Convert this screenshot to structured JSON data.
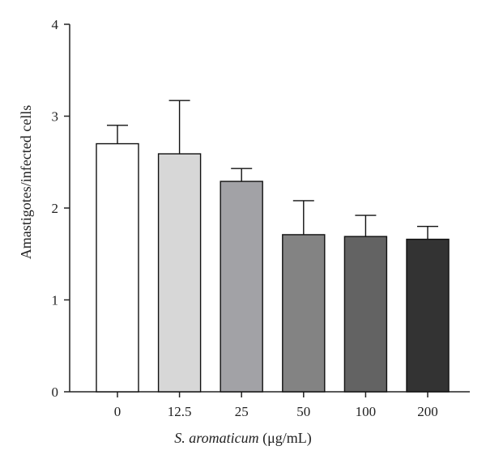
{
  "chart_data": {
    "type": "bar",
    "title": "",
    "categories": [
      "0",
      "12.5",
      "25",
      "50",
      "100",
      "200"
    ],
    "values": [
      2.7,
      2.59,
      2.29,
      1.71,
      1.69,
      1.66
    ],
    "errors": [
      0.2,
      0.58,
      0.14,
      0.37,
      0.23,
      0.14
    ],
    "colors": [
      "#ffffff",
      "#d7d7d7",
      "#a2a2a6",
      "#838383",
      "#636363",
      "#333333"
    ],
    "ylabel": "Amastigotes/infected cells",
    "xlabel_italic": "S. aromaticum",
    "xlabel_rest": " (μg/mL)",
    "ylim": [
      0,
      4
    ],
    "yticks": [
      "0",
      "1",
      "2",
      "3",
      "4"
    ],
    "grid": false
  }
}
